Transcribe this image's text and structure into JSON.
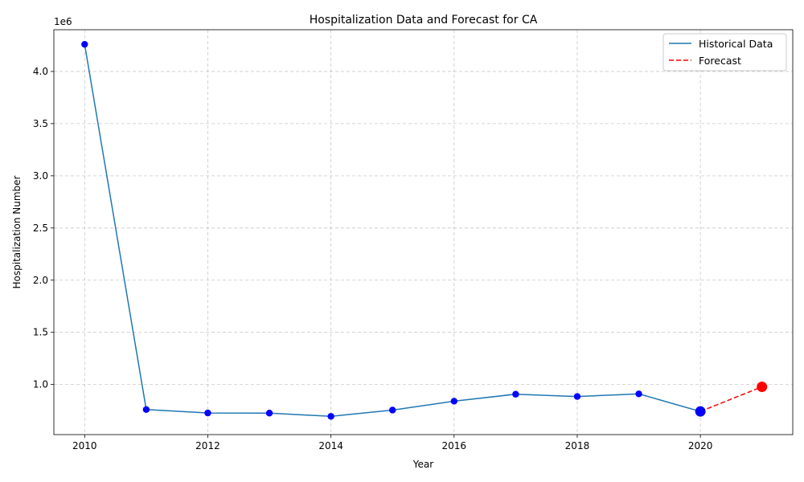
{
  "chart_data": {
    "type": "line",
    "title": "Hospitalization Data and Forecast for CA",
    "xlabel": "Year",
    "ylabel": "Hospitalization Number",
    "y_offset_label": "1e6",
    "xlim": [
      2009.5,
      2021.5
    ],
    "ylim": [
      520000,
      4400000
    ],
    "x_ticks": [
      2010,
      2012,
      2014,
      2016,
      2018,
      2020
    ],
    "x_tick_labels": [
      "2010",
      "2012",
      "2014",
      "2016",
      "2018",
      "2020"
    ],
    "y_ticks": [
      1000000,
      1500000,
      2000000,
      2500000,
      3000000,
      3500000,
      4000000
    ],
    "y_tick_labels": [
      "1.0",
      "1.5",
      "2.0",
      "2.5",
      "3.0",
      "3.5",
      "4.0"
    ],
    "grid": true,
    "legend_position": "top-right",
    "series": [
      {
        "name": "Historical Data",
        "style": "solid",
        "color": "#1f77b4",
        "marker_color": "#0000ff",
        "x": [
          2010,
          2011,
          2012,
          2013,
          2014,
          2015,
          2016,
          2017,
          2018,
          2019,
          2020
        ],
        "y": [
          4260000,
          760000,
          727000,
          726000,
          695000,
          755000,
          840000,
          907000,
          885000,
          910000,
          742000
        ]
      },
      {
        "name": "Forecast",
        "style": "dashed",
        "color": "#ff0000",
        "marker_color": "#ff0000",
        "x": [
          2020,
          2021
        ],
        "y": [
          742000,
          978000
        ]
      }
    ],
    "highlight_points": [
      {
        "x": 2020,
        "y": 742000,
        "color": "#0000ff"
      },
      {
        "x": 2021,
        "y": 978000,
        "color": "#ff0000"
      }
    ]
  }
}
